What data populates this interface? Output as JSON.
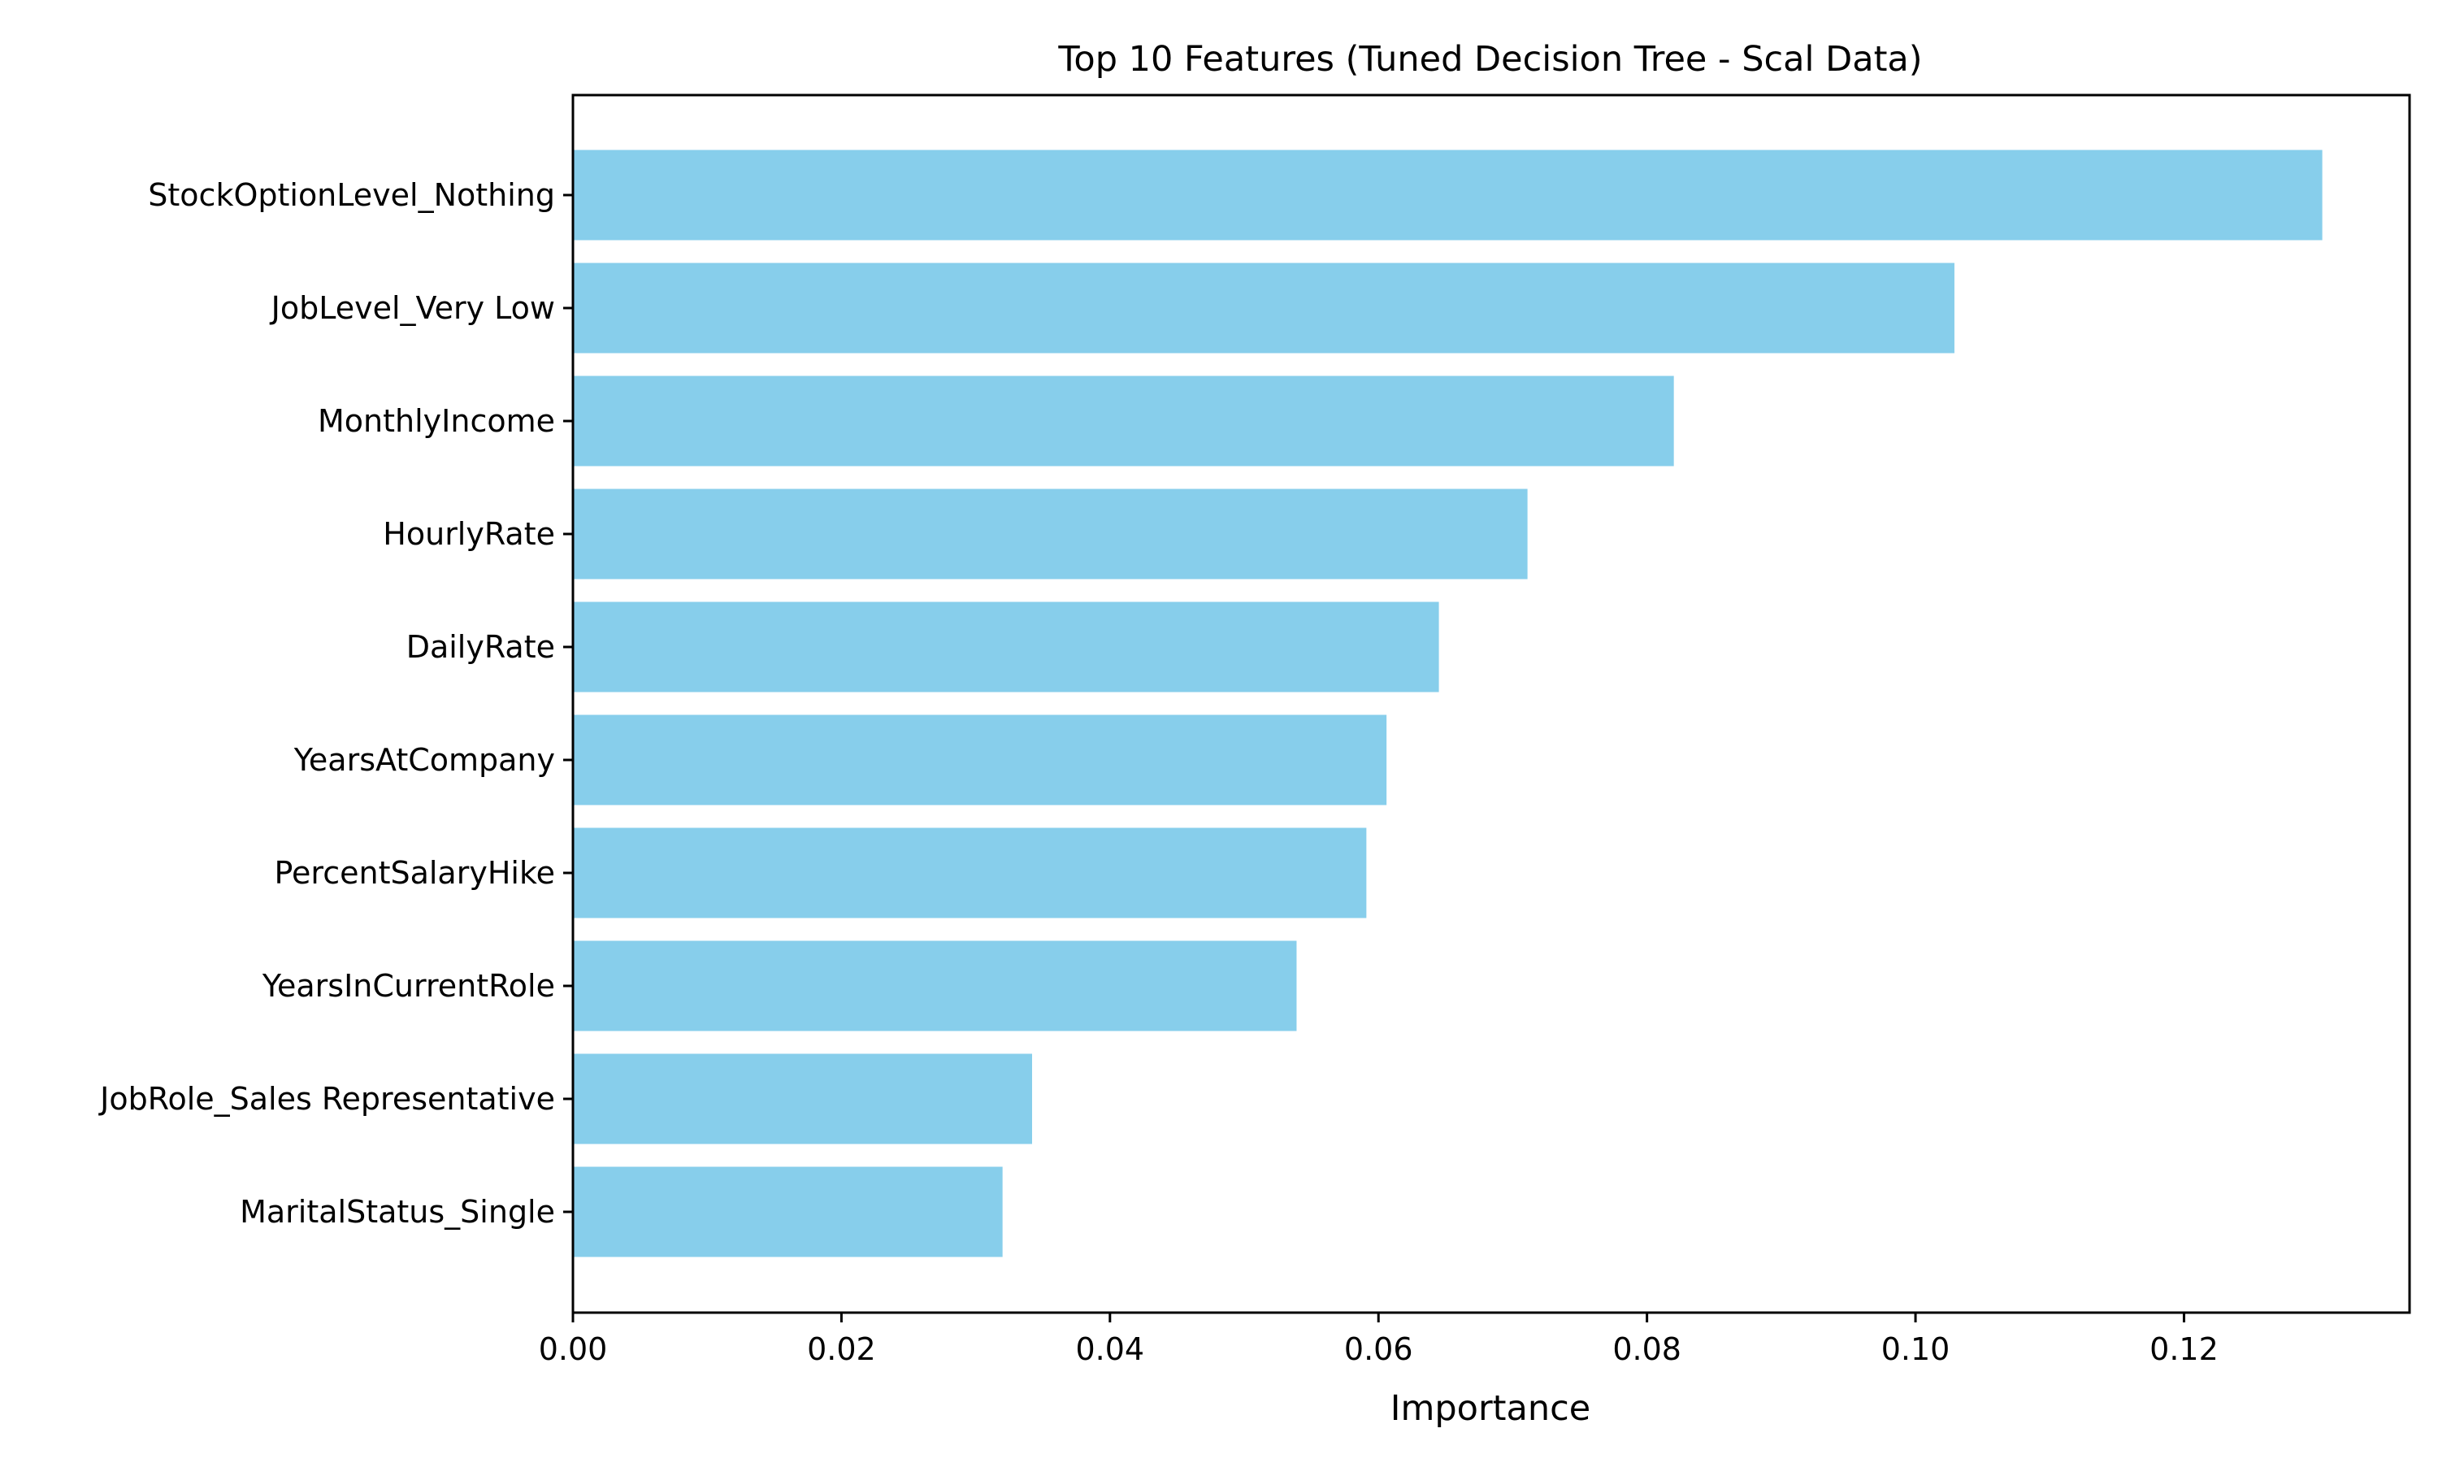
{
  "chart_data": {
    "type": "bar",
    "orientation": "horizontal",
    "title": "Top 10 Features (Tuned Decision Tree - Scal Data)",
    "xlabel": "Importance",
    "ylabel": "",
    "categories": [
      "StockOptionLevel_Nothing",
      "JobLevel_Very Low",
      "MonthlyIncome",
      "HourlyRate",
      "DailyRate",
      "YearsAtCompany",
      "PercentSalaryHike",
      "YearsInCurrentRole",
      "JobRole_Sales Representative",
      "MaritalStatus_Single"
    ],
    "values": [
      0.1303,
      0.1029,
      0.082,
      0.0711,
      0.0645,
      0.0606,
      0.0591,
      0.0539,
      0.0342,
      0.032
    ],
    "xlim": [
      0,
      0.1368
    ],
    "xticks": [
      0.0,
      0.02,
      0.04,
      0.06,
      0.08,
      0.1,
      0.12
    ],
    "xtick_labels": [
      "0.00",
      "0.02",
      "0.04",
      "0.06",
      "0.08",
      "0.10",
      "0.12"
    ],
    "bar_color": "#87CEEB",
    "grid": false,
    "legend": "none"
  }
}
